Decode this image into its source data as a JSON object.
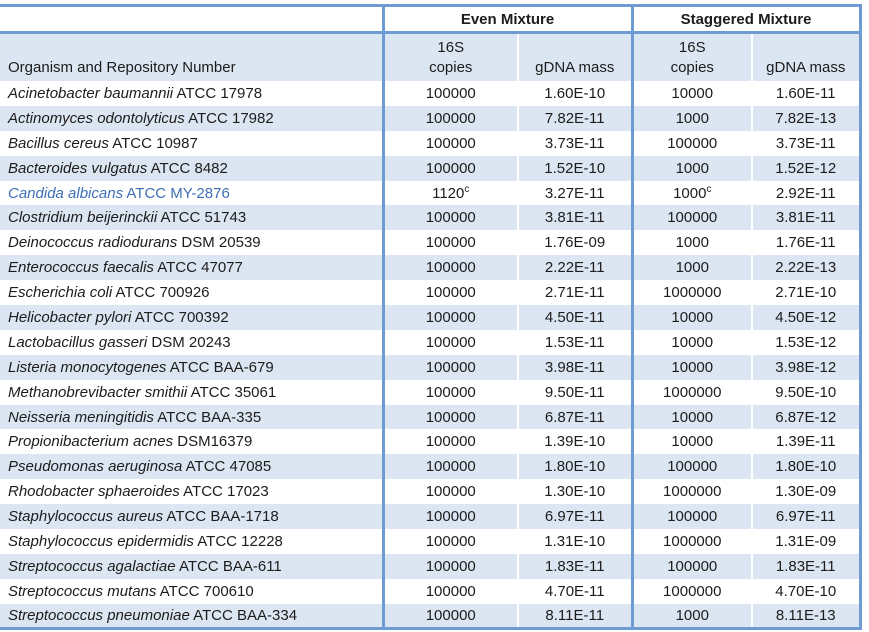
{
  "colors": {
    "band_blue": "#dce6f2",
    "border_blue": "#6f9bd3",
    "highlight_row_text_blue": "#3e6fb5",
    "text": "#1c1c1c"
  },
  "table": {
    "group_headers": [
      "Even Mixture",
      "Staggered Mixture"
    ],
    "col_headers": {
      "organism": "Organism and Repository Number",
      "copies_line1": "16S",
      "copies_line2": "copies",
      "gdna": "gDNA mass"
    },
    "rows": [
      {
        "organism_italic": "Acinetobacter baumannii",
        "organism_rest": "ATCC 17978",
        "even_copies": "100000",
        "even_copies_sup": "",
        "even_mass": "1.60E-10",
        "stag_copies": "10000",
        "stag_copies_sup": "",
        "stag_mass": "1.60E-11",
        "highlight": false
      },
      {
        "organism_italic": "Actinomyces odontolyticus",
        "organism_rest": "ATCC 17982",
        "even_copies": "100000",
        "even_copies_sup": "",
        "even_mass": "7.82E-11",
        "stag_copies": "1000",
        "stag_copies_sup": "",
        "stag_mass": "7.82E-13",
        "highlight": false
      },
      {
        "organism_italic": "Bacillus cereus",
        "organism_rest": "ATCC 10987",
        "even_copies": "100000",
        "even_copies_sup": "",
        "even_mass": "3.73E-11",
        "stag_copies": "100000",
        "stag_copies_sup": "",
        "stag_mass": "3.73E-11",
        "highlight": false
      },
      {
        "organism_italic": "Bacteroides vulgatus",
        "organism_rest": "ATCC 8482",
        "even_copies": "100000",
        "even_copies_sup": "",
        "even_mass": "1.52E-10",
        "stag_copies": "1000",
        "stag_copies_sup": "",
        "stag_mass": "1.52E-12",
        "highlight": false
      },
      {
        "organism_italic": "Candida albicans",
        "organism_rest": "ATCC MY-2876",
        "even_copies": "1120",
        "even_copies_sup": "c",
        "even_mass": "3.27E-11",
        "stag_copies": "1000",
        "stag_copies_sup": "c",
        "stag_mass": "2.92E-11",
        "highlight": true
      },
      {
        "organism_italic": "Clostridium beijerinckii",
        "organism_rest": "ATCC 51743",
        "even_copies": "100000",
        "even_copies_sup": "",
        "even_mass": "3.81E-11",
        "stag_copies": "100000",
        "stag_copies_sup": "",
        "stag_mass": "3.81E-11",
        "highlight": false
      },
      {
        "organism_italic": "Deinococcus radiodurans",
        "organism_rest": "DSM 20539",
        "even_copies": "100000",
        "even_copies_sup": "",
        "even_mass": "1.76E-09",
        "stag_copies": "1000",
        "stag_copies_sup": "",
        "stag_mass": "1.76E-11",
        "highlight": false
      },
      {
        "organism_italic": "Enterococcus faecalis",
        "organism_rest": "ATCC 47077",
        "even_copies": "100000",
        "even_copies_sup": "",
        "even_mass": "2.22E-11",
        "stag_copies": "1000",
        "stag_copies_sup": "",
        "stag_mass": "2.22E-13",
        "highlight": false
      },
      {
        "organism_italic": "Escherichia coli",
        "organism_rest": "ATCC 700926",
        "even_copies": "100000",
        "even_copies_sup": "",
        "even_mass": "2.71E-11",
        "stag_copies": "1000000",
        "stag_copies_sup": "",
        "stag_mass": "2.71E-10",
        "highlight": false
      },
      {
        "organism_italic": "Helicobacter pylori",
        "organism_rest": "ATCC 700392",
        "even_copies": "100000",
        "even_copies_sup": "",
        "even_mass": "4.50E-11",
        "stag_copies": "10000",
        "stag_copies_sup": "",
        "stag_mass": "4.50E-12",
        "highlight": false
      },
      {
        "organism_italic": "Lactobacillus gasseri",
        "organism_rest": "DSM 20243",
        "even_copies": "100000",
        "even_copies_sup": "",
        "even_mass": "1.53E-11",
        "stag_copies": "10000",
        "stag_copies_sup": "",
        "stag_mass": "1.53E-12",
        "highlight": false
      },
      {
        "organism_italic": "Listeria monocytogenes",
        "organism_rest": "ATCC BAA-679",
        "even_copies": "100000",
        "even_copies_sup": "",
        "even_mass": "3.98E-11",
        "stag_copies": "10000",
        "stag_copies_sup": "",
        "stag_mass": "3.98E-12",
        "highlight": false
      },
      {
        "organism_italic": "Methanobrevibacter smithii",
        "organism_rest": "ATCC 35061",
        "even_copies": "100000",
        "even_copies_sup": "",
        "even_mass": "9.50E-11",
        "stag_copies": "1000000",
        "stag_copies_sup": "",
        "stag_mass": "9.50E-10",
        "highlight": false
      },
      {
        "organism_italic": "Neisseria meningitidis",
        "organism_rest": "ATCC BAA-335",
        "even_copies": "100000",
        "even_copies_sup": "",
        "even_mass": "6.87E-11",
        "stag_copies": "10000",
        "stag_copies_sup": "",
        "stag_mass": "6.87E-12",
        "highlight": false
      },
      {
        "organism_italic": "Propionibacterium acnes",
        "organism_rest": "DSM16379",
        "even_copies": "100000",
        "even_copies_sup": "",
        "even_mass": "1.39E-10",
        "stag_copies": "10000",
        "stag_copies_sup": "",
        "stag_mass": "1.39E-11",
        "highlight": false
      },
      {
        "organism_italic": "Pseudomonas aeruginosa",
        "organism_rest": "ATCC 47085",
        "even_copies": "100000",
        "even_copies_sup": "",
        "even_mass": "1.80E-10",
        "stag_copies": "100000",
        "stag_copies_sup": "",
        "stag_mass": "1.80E-10",
        "highlight": false
      },
      {
        "organism_italic": "Rhodobacter sphaeroides",
        "organism_rest": "ATCC 17023",
        "even_copies": "100000",
        "even_copies_sup": "",
        "even_mass": "1.30E-10",
        "stag_copies": "1000000",
        "stag_copies_sup": "",
        "stag_mass": "1.30E-09",
        "highlight": false
      },
      {
        "organism_italic": "Staphylococcus aureus",
        "organism_rest": "ATCC BAA-1718",
        "even_copies": "100000",
        "even_copies_sup": "",
        "even_mass": "6.97E-11",
        "stag_copies": "100000",
        "stag_copies_sup": "",
        "stag_mass": "6.97E-11",
        "highlight": false
      },
      {
        "organism_italic": "Staphylococcus epidermidis",
        "organism_rest": "ATCC 12228",
        "even_copies": "100000",
        "even_copies_sup": "",
        "even_mass": "1.31E-10",
        "stag_copies": "1000000",
        "stag_copies_sup": "",
        "stag_mass": "1.31E-09",
        "highlight": false
      },
      {
        "organism_italic": "Streptococcus agalactiae",
        "organism_rest": "ATCC BAA-611",
        "even_copies": "100000",
        "even_copies_sup": "",
        "even_mass": "1.83E-11",
        "stag_copies": "100000",
        "stag_copies_sup": "",
        "stag_mass": "1.83E-11",
        "highlight": false
      },
      {
        "organism_italic": "Streptococcus mutans",
        "organism_rest": "ATCC 700610",
        "even_copies": "100000",
        "even_copies_sup": "",
        "even_mass": "4.70E-11",
        "stag_copies": "1000000",
        "stag_copies_sup": "",
        "stag_mass": "4.70E-10",
        "highlight": false
      },
      {
        "organism_italic": "Streptococcus pneumoniae",
        "organism_rest": "ATCC BAA-334",
        "even_copies": "100000",
        "even_copies_sup": "",
        "even_mass": "8.11E-11",
        "stag_copies": "1000",
        "stag_copies_sup": "",
        "stag_mass": "8.11E-13",
        "highlight": false
      }
    ]
  }
}
